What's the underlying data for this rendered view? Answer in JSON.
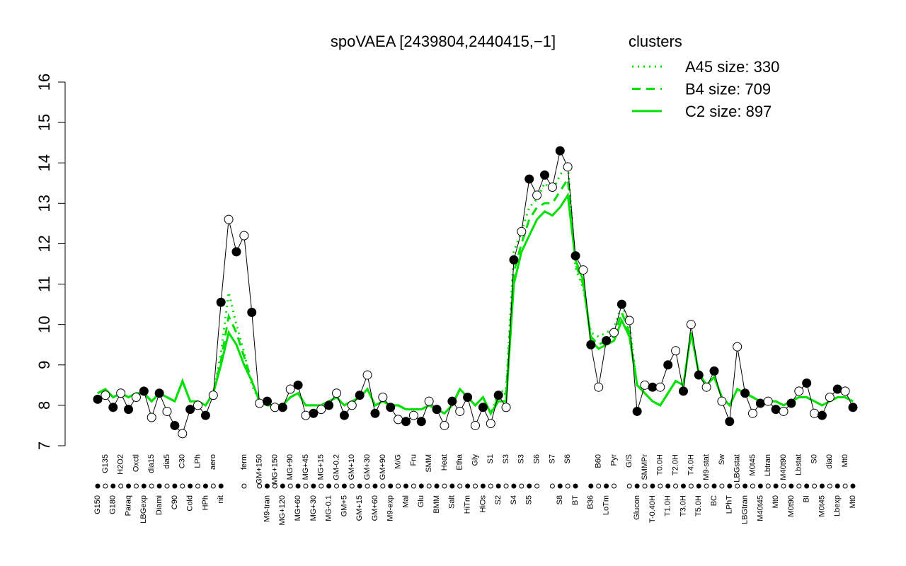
{
  "chart_data": {
    "type": "line",
    "title": "spoVAEA [2439804,2440415,−1]",
    "legend_title": "clusters",
    "legend_position": "top-right",
    "ylim": [
      7,
      16
    ],
    "yticks": [
      7,
      8,
      9,
      10,
      11,
      12,
      13,
      14,
      15,
      16
    ],
    "categories": [
      "G150",
      "G135",
      "G180",
      "H2O2",
      "Paraq",
      "Oxctl",
      "LBGexp",
      "dia15",
      "Diami",
      "dia5",
      "C90",
      "C30",
      "Cold",
      "LPh",
      "HPh",
      "aero",
      "nit",
      null,
      null,
      "ferm",
      null,
      "GM+150",
      "M9-tran",
      "MG+150",
      "MG+120",
      "MG+90",
      "MG+60",
      "MG+45",
      "MG+30",
      "MG+15",
      "MG-0.1",
      "GM-0.2",
      "GM+5",
      "GM+10",
      "GM+15",
      "GM+30",
      "GM+60",
      "GM+90",
      "M9-exp",
      "M/G",
      "Mal",
      "Fru",
      "Glu",
      "SMM",
      "BMM",
      "Heat",
      "Salt",
      "Etha",
      "HiTm",
      "Gly",
      "HiOs",
      "S1",
      "S2",
      "S3",
      "S4",
      "S3",
      "S5",
      "S6",
      null,
      "S7",
      "S8",
      "S6",
      "BT",
      null,
      "B36",
      "B60",
      "LoTm",
      "Pyr",
      null,
      "G/S",
      "Glucon",
      "SMMPr",
      "T-0.40H",
      "T0.0H",
      "T1.0H",
      "T2.0H",
      "T3.0H",
      "T4.0H",
      "T5.0H",
      "M9-stat",
      "BC",
      "Sw",
      "LPhT",
      "LBGstat",
      "LBGtran",
      "M0t45",
      "M40t45",
      "Lbtran",
      "Mt0",
      "M40t90",
      "M0t90",
      "Lbstat",
      "BI",
      "S0",
      "M0t45",
      "dia0",
      "Lbexp",
      "Mt0",
      "Mt0"
    ],
    "values": [
      8.15,
      8.25,
      7.95,
      8.3,
      7.9,
      8.2,
      8.35,
      7.7,
      8.3,
      7.85,
      7.5,
      7.3,
      7.9,
      8.0,
      7.75,
      8.25,
      10.55,
      12.6,
      11.8,
      12.2,
      10.3,
      8.05,
      8.1,
      7.95,
      7.95,
      8.4,
      8.5,
      7.75,
      7.8,
      7.9,
      8.0,
      8.3,
      7.75,
      8.0,
      8.25,
      8.75,
      7.8,
      8.2,
      7.95,
      7.65,
      7.6,
      7.75,
      7.6,
      8.1,
      7.9,
      7.5,
      8.1,
      7.85,
      8.2,
      7.5,
      7.95,
      7.55,
      8.25,
      7.95,
      11.6,
      12.3,
      13.6,
      13.2,
      13.7,
      13.4,
      14.3,
      13.9,
      11.7,
      11.35,
      9.5,
      8.45,
      9.6,
      9.8,
      10.5,
      10.1,
      7.85,
      8.5,
      8.45,
      8.45,
      9.0,
      9.35,
      8.35,
      10.0,
      8.75,
      8.45,
      8.85,
      8.1,
      7.6,
      9.45,
      8.3,
      7.8,
      8.05,
      8.1,
      7.9,
      7.85,
      8.05,
      8.35,
      8.55,
      7.8,
      7.75,
      8.2,
      8.4,
      8.35,
      7.95
    ],
    "color": "#000000",
    "series": [
      {
        "name": "A45 size: 330",
        "color": "#00e000",
        "dash": "dotted",
        "values": [
          8.3,
          8.4,
          8.2,
          8.3,
          8.2,
          8.3,
          8.3,
          8.1,
          8.3,
          8.2,
          8.1,
          8.6,
          8.1,
          8.1,
          8.0,
          8.3,
          9.3,
          10.8,
          10.0,
          9.3,
          8.5,
          8.1,
          8.0,
          8.0,
          8.0,
          8.2,
          8.3,
          8.0,
          8.0,
          8.0,
          8.1,
          8.2,
          8.0,
          8.1,
          8.2,
          8.4,
          8.0,
          8.1,
          8.0,
          8.0,
          7.9,
          7.9,
          7.9,
          8.0,
          7.9,
          7.8,
          8.0,
          8.4,
          8.2,
          8.0,
          8.2,
          7.8,
          8.3,
          8.4,
          11.8,
          12.3,
          12.9,
          13.1,
          13.5,
          13.3,
          13.7,
          14.0,
          11.4,
          10.9,
          9.8,
          9.7,
          9.8,
          9.9,
          10.5,
          10.0,
          8.5,
          8.3,
          8.1,
          8.0,
          8.3,
          8.6,
          8.5,
          9.8,
          8.8,
          8.5,
          8.7,
          8.2,
          8.0,
          8.4,
          8.3,
          8.2,
          8.1,
          8.1,
          8.1,
          8.0,
          8.1,
          8.2,
          8.2,
          8.1,
          8.0,
          8.1,
          8.2,
          8.2,
          8.1
        ]
      },
      {
        "name": "B4 size: 709",
        "color": "#00e000",
        "dash": "dashed",
        "values": [
          8.3,
          8.4,
          8.2,
          8.3,
          8.2,
          8.3,
          8.3,
          8.1,
          8.3,
          8.2,
          8.1,
          8.6,
          8.1,
          8.1,
          8.0,
          8.3,
          9.1,
          10.2,
          9.8,
          9.2,
          8.6,
          8.1,
          8.0,
          8.0,
          8.0,
          8.2,
          8.3,
          8.0,
          8.0,
          8.0,
          8.1,
          8.2,
          8.0,
          8.1,
          8.2,
          8.4,
          8.0,
          8.1,
          8.0,
          8.0,
          7.9,
          7.9,
          7.9,
          8.0,
          7.9,
          7.8,
          8.0,
          8.4,
          8.2,
          8.0,
          8.2,
          7.8,
          8.2,
          8.3,
          11.3,
          12.0,
          12.6,
          12.9,
          13.0,
          13.0,
          13.3,
          13.6,
          11.5,
          11.0,
          9.7,
          9.5,
          9.6,
          9.7,
          10.3,
          9.8,
          8.5,
          8.3,
          8.1,
          8.0,
          8.3,
          8.6,
          8.5,
          9.8,
          8.8,
          8.5,
          8.7,
          8.2,
          8.0,
          8.4,
          8.3,
          8.2,
          8.1,
          8.1,
          8.1,
          8.0,
          8.1,
          8.2,
          8.2,
          8.1,
          8.0,
          8.1,
          8.2,
          8.2,
          8.1
        ]
      },
      {
        "name": "C2 size: 897",
        "color": "#00e000",
        "dash": "solid",
        "values": [
          8.3,
          8.4,
          8.2,
          8.3,
          8.2,
          8.3,
          8.3,
          8.1,
          8.3,
          8.2,
          8.1,
          8.6,
          8.1,
          8.1,
          8.0,
          8.3,
          9.0,
          9.8,
          9.5,
          9.0,
          8.6,
          8.1,
          8.0,
          8.0,
          8.0,
          8.2,
          8.3,
          8.0,
          8.0,
          8.0,
          8.1,
          8.2,
          8.0,
          8.1,
          8.2,
          8.4,
          8.0,
          8.1,
          8.0,
          8.0,
          7.9,
          7.9,
          7.9,
          8.0,
          7.9,
          7.8,
          8.0,
          8.4,
          8.2,
          8.0,
          8.2,
          7.8,
          8.1,
          8.1,
          11.0,
          11.8,
          12.2,
          12.6,
          12.8,
          12.7,
          12.9,
          13.2,
          11.6,
          11.1,
          9.6,
          9.4,
          9.5,
          9.6,
          10.1,
          9.7,
          8.5,
          8.3,
          8.1,
          8.0,
          8.3,
          8.6,
          8.5,
          9.8,
          8.8,
          8.5,
          8.7,
          8.2,
          8.0,
          8.4,
          8.3,
          8.2,
          8.1,
          8.1,
          8.1,
          8.0,
          8.1,
          8.2,
          8.2,
          8.1,
          8.0,
          8.1,
          8.2,
          8.2,
          8.1
        ]
      }
    ]
  }
}
